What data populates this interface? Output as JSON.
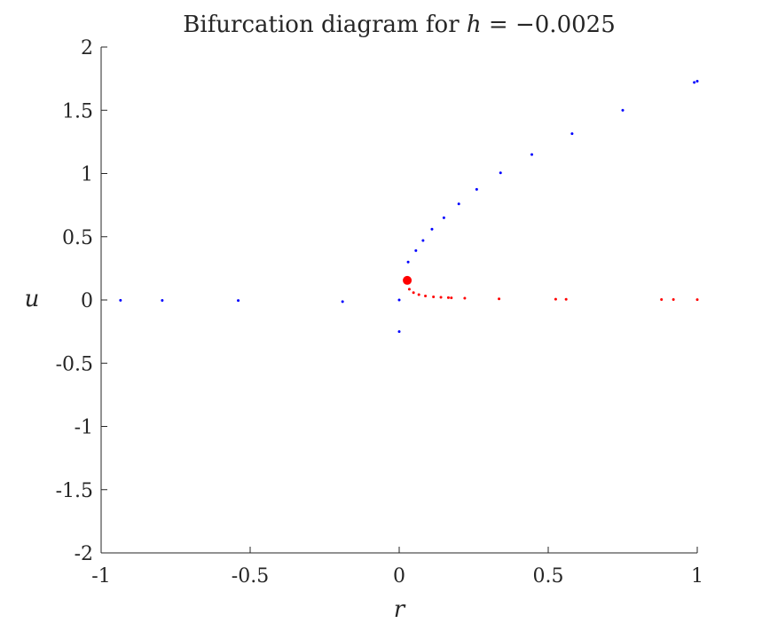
{
  "chart_data": {
    "type": "scatter",
    "title": "Bifurcation diagram for h = −0.0025",
    "title_prefix": "Bifurcation diagram for ",
    "title_math_var": "h",
    "title_math_rest": " = −0.0025",
    "xlabel": "r",
    "ylabel": "u",
    "xlim": [
      -1,
      1
    ],
    "ylim": [
      -2,
      2
    ],
    "x_ticks": [
      -1,
      -0.5,
      0,
      0.5,
      1
    ],
    "x_tick_labels": [
      "-1",
      "-0.5",
      "0",
      "0.5",
      "1"
    ],
    "y_ticks": [
      -2,
      -1.5,
      -1,
      -0.5,
      0,
      0.5,
      1,
      1.5,
      2
    ],
    "y_tick_labels": [
      "-2",
      "-1.5",
      "-1",
      "-0.5",
      "0",
      "0.5",
      "1",
      "1.5",
      "2"
    ],
    "grid": false,
    "series": [
      {
        "color": "#0000ff",
        "marker": "dot",
        "points": [
          [
            -0.935,
            -0.0027
          ],
          [
            -0.795,
            -0.0031
          ],
          [
            -0.54,
            -0.0046
          ],
          [
            -0.19,
            -0.013
          ],
          [
            0.0,
            -0.25
          ],
          [
            0.0,
            0.0
          ],
          [
            0.03,
            0.3
          ],
          [
            0.056,
            0.39
          ],
          [
            0.08,
            0.47
          ],
          [
            0.11,
            0.56
          ],
          [
            0.15,
            0.65
          ],
          [
            0.2,
            0.76
          ],
          [
            0.26,
            0.875
          ],
          [
            0.34,
            1.005
          ],
          [
            0.445,
            1.15
          ],
          [
            0.58,
            1.315
          ],
          [
            0.75,
            1.5
          ],
          [
            0.99,
            1.72
          ],
          [
            1.0,
            1.73
          ]
        ]
      },
      {
        "color": "#ff0000",
        "marker": "dot",
        "points": [
          [
            0.034,
            0.085
          ],
          [
            0.048,
            0.058
          ],
          [
            0.066,
            0.042
          ],
          [
            0.088,
            0.032
          ],
          [
            0.115,
            0.025
          ],
          [
            0.14,
            0.021
          ],
          [
            0.165,
            0.018
          ],
          [
            0.175,
            0.017
          ],
          [
            0.22,
            0.014
          ],
          [
            0.335,
            0.009
          ],
          [
            0.525,
            0.006
          ],
          [
            0.56,
            0.0055
          ],
          [
            0.88,
            0.0035
          ],
          [
            0.92,
            0.0033
          ],
          [
            1.0,
            0.003
          ]
        ]
      }
    ],
    "highlight_points": [
      {
        "x": 0.027,
        "y": 0.155,
        "color": "#ff0000"
      }
    ]
  }
}
